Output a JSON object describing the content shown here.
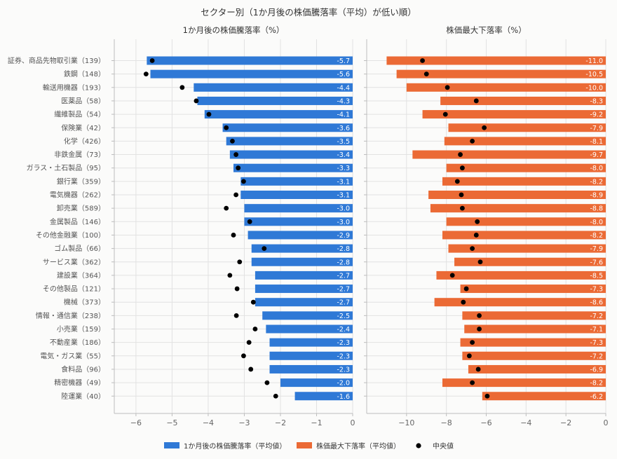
{
  "title": "セクター別（1か月後の株価騰落率（平均）が低い順）",
  "chart_data": {
    "type": "bar",
    "orientation": "horizontal",
    "categories": [
      "証券、商品先物取引業（139）",
      "鉄鋼（148）",
      "輸送用機器（193）",
      "医薬品（58）",
      "繊維製品（54）",
      "保険業（42）",
      "化学（426）",
      "非鉄金属（73）",
      "ガラス・土石製品（95）",
      "銀行業（359）",
      "電気機器（262）",
      "卸売業（589）",
      "金属製品（146）",
      "その他金融業（100）",
      "ゴム製品（66）",
      "サービス業（362）",
      "建設業（364）",
      "その他製品（121）",
      "機械（373）",
      "情報・通信業（238）",
      "小売業（159）",
      "不動産業（186）",
      "電気・ガス業（55）",
      "食料品（96）",
      "精密機器（49）",
      "陸運業（40）"
    ],
    "panels": [
      {
        "title": "1か月後の株価騰落率（%）",
        "xlim": [
          -6.6,
          0
        ],
        "xticks": [
          -6,
          -5,
          -4,
          -3,
          -2,
          -1,
          0
        ],
        "color": "#2f79d6",
        "mean_label": "1か月後の株価騰落率（平均値）",
        "means": [
          -5.7,
          -5.6,
          -4.4,
          -4.3,
          -4.1,
          -3.6,
          -3.5,
          -3.4,
          -3.3,
          -3.1,
          -3.1,
          -3.0,
          -3.0,
          -2.9,
          -2.8,
          -2.8,
          -2.7,
          -2.7,
          -2.7,
          -2.5,
          -2.4,
          -2.3,
          -2.3,
          -2.3,
          -2.0,
          -1.6
        ],
        "medians": [
          -5.55,
          -5.72,
          -4.72,
          -4.33,
          -3.98,
          -3.5,
          -3.33,
          -3.23,
          -3.17,
          -3.02,
          -3.23,
          -3.5,
          -2.85,
          -3.3,
          -2.45,
          -3.13,
          -3.4,
          -3.2,
          -2.75,
          -3.22,
          -2.7,
          -2.87,
          -3.02,
          -2.82,
          -2.37,
          -2.13
        ]
      },
      {
        "title": "株価最大下落率（%）",
        "xlim": [
          -12.0,
          0
        ],
        "xticks": [
          -10,
          -8,
          -6,
          -4,
          -2,
          0
        ],
        "color": "#eb6a35",
        "mean_label": "株価最大下落率（平均値）",
        "means": [
          -11.0,
          -10.5,
          -10.0,
          -8.3,
          -9.2,
          -7.9,
          -8.1,
          -9.7,
          -8.0,
          -8.2,
          -8.9,
          -8.8,
          -8.0,
          -8.2,
          -7.9,
          -7.6,
          -8.5,
          -7.3,
          -8.6,
          -7.2,
          -7.1,
          -7.3,
          -7.2,
          -6.9,
          -8.2,
          -6.2
        ],
        "medians": [
          -9.2,
          -9.0,
          -7.95,
          -6.5,
          -8.05,
          -6.1,
          -6.7,
          -7.3,
          -7.2,
          -7.45,
          -7.25,
          -7.2,
          -6.45,
          -6.5,
          -6.7,
          -6.3,
          -7.7,
          -7.0,
          -7.15,
          -6.35,
          -6.35,
          -6.7,
          -6.85,
          -6.4,
          -6.7,
          -5.95
        ]
      }
    ],
    "median_label": "中央値",
    "legend_position": "bottom-center",
    "grid": true
  }
}
